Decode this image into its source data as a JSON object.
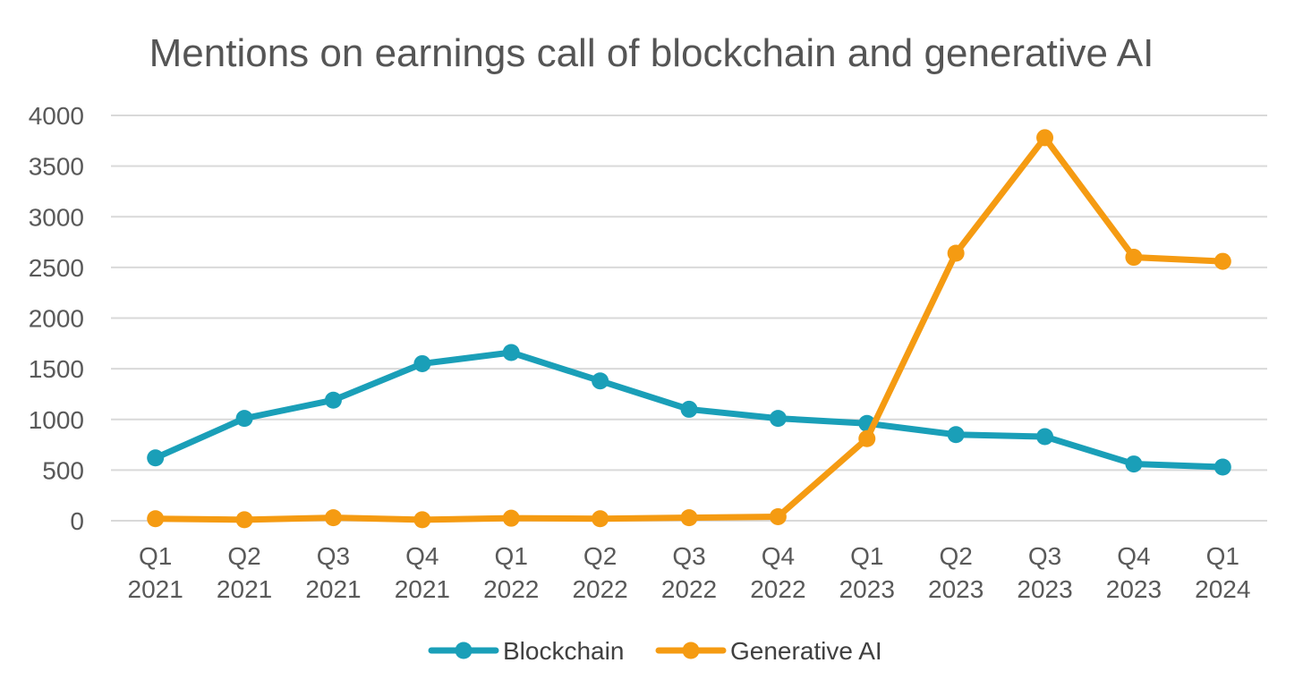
{
  "chart_data": {
    "type": "line",
    "title": "Mentions on earnings call of blockchain and generative AI",
    "xlabel": "",
    "ylabel": "",
    "categories": [
      [
        "Q1",
        "2021"
      ],
      [
        "Q2",
        "2021"
      ],
      [
        "Q3",
        "2021"
      ],
      [
        "Q4",
        "2021"
      ],
      [
        "Q1",
        "2022"
      ],
      [
        "Q2",
        "2022"
      ],
      [
        "Q3",
        "2022"
      ],
      [
        "Q4",
        "2022"
      ],
      [
        "Q1",
        "2023"
      ],
      [
        "Q2",
        "2023"
      ],
      [
        "Q3",
        "2023"
      ],
      [
        "Q4",
        "2023"
      ],
      [
        "Q1",
        "2024"
      ]
    ],
    "ylim": [
      0,
      4000
    ],
    "yticks": [
      "0",
      "500",
      "1000",
      "1500",
      "2000",
      "2500",
      "3000",
      "3500",
      "4000"
    ],
    "grid": true,
    "legend_position": "bottom",
    "series": [
      {
        "name": "Blockchain",
        "color": "#1a9fb8",
        "values": [
          620,
          1010,
          1190,
          1550,
          1660,
          1380,
          1100,
          1010,
          960,
          850,
          830,
          560,
          530
        ]
      },
      {
        "name": "Generative AI",
        "color": "#f59b12",
        "values": [
          20,
          10,
          30,
          10,
          25,
          20,
          30,
          40,
          810,
          2640,
          3780,
          2600,
          2560
        ]
      }
    ]
  }
}
